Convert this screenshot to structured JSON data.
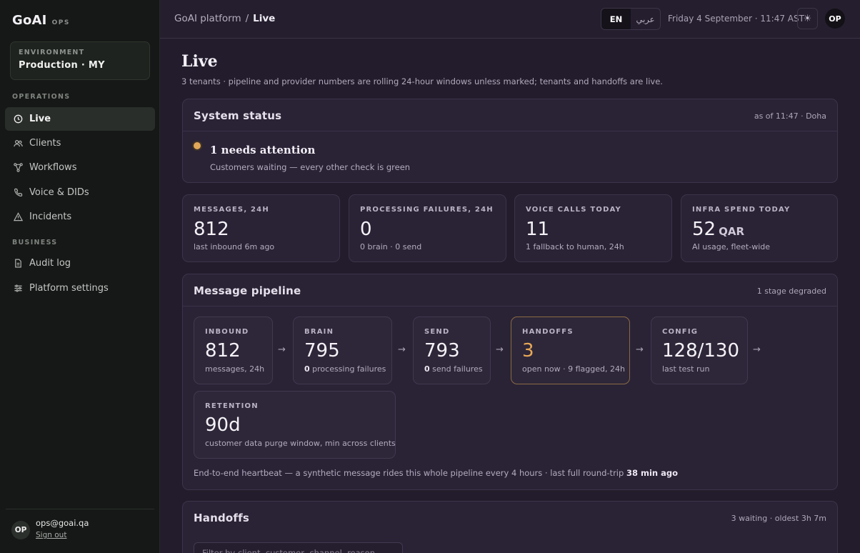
{
  "brand": {
    "name": "GoAI",
    "tag": "OPS"
  },
  "environment": {
    "label": "ENVIRONMENT",
    "value": "Production · MY"
  },
  "nav": {
    "operations_label": "OPERATIONS",
    "operations": [
      {
        "label": "Live",
        "icon": "clock-icon",
        "active": true
      },
      {
        "label": "Clients",
        "icon": "users-icon"
      },
      {
        "label": "Workflows",
        "icon": "workflow-icon"
      },
      {
        "label": "Voice & DIDs",
        "icon": "phone-icon"
      },
      {
        "label": "Incidents",
        "icon": "warning-icon"
      }
    ],
    "business_label": "BUSINESS",
    "business": [
      {
        "label": "Audit log",
        "icon": "document-icon"
      },
      {
        "label": "Platform settings",
        "icon": "sliders-icon"
      }
    ]
  },
  "user": {
    "initials": "OP",
    "email": "ops@goai.qa",
    "sign_out": "Sign out"
  },
  "topbar": {
    "breadcrumb_root": "GoAI platform",
    "breadcrumb_sep": "/",
    "breadcrumb_current": "Live",
    "lang_en": "EN",
    "lang_ar": "عربي",
    "datetime": "Friday 4 September · 11:47 AST",
    "theme_icon": "☀",
    "avatar": "OP"
  },
  "page": {
    "title": "Live",
    "subtitle": "3 tenants · pipeline and provider numbers are rolling 24-hour windows unless marked; tenants and handoffs are live."
  },
  "system_status": {
    "title": "System status",
    "meta": "as of 11:47 · Doha",
    "headline": "1 needs attention",
    "detail": "Customers waiting — every other check is green",
    "dot_color": "#e1a85a"
  },
  "kpis": [
    {
      "label": "MESSAGES, 24H",
      "value": "812",
      "unit": "",
      "note": "last inbound 6m ago"
    },
    {
      "label": "PROCESSING FAILURES, 24H",
      "value": "0",
      "unit": "",
      "note": "0 brain · 0 send"
    },
    {
      "label": "VOICE CALLS TODAY",
      "value": "11",
      "unit": "",
      "note": "1 fallback to human, 24h"
    },
    {
      "label": "INFRA SPEND TODAY",
      "value": "52",
      "unit": "QAR",
      "note": "AI usage, fleet-wide"
    }
  ],
  "pipeline": {
    "title": "Message pipeline",
    "meta": "1 stage degraded",
    "arrow": "→",
    "stages": [
      {
        "label": "INBOUND",
        "value": "812",
        "note_bold": "",
        "note": "messages, 24h"
      },
      {
        "label": "BRAIN",
        "value": "795",
        "note_bold": "0",
        "note": " processing failures"
      },
      {
        "label": "SEND",
        "value": "793",
        "note_bold": "0",
        "note": " send failures"
      },
      {
        "label": "HANDOFFS",
        "value": "3",
        "note_bold": "",
        "note": "open now · 9 flagged, 24h"
      },
      {
        "label": "CONFIG",
        "value": "128/130",
        "note_bold": "",
        "note": "last test run"
      },
      {
        "label": "RETENTION",
        "value": "90d",
        "note_bold": "",
        "note": "customer data purge window, min across clients"
      }
    ],
    "heartbeat_text": "End-to-end heartbeat — a synthetic message rides this whole pipeline every 4 hours · last full round-trip ",
    "heartbeat_bold": "38 min ago",
    "warn_color": "#e8a857"
  },
  "handoffs": {
    "title": "Handoffs",
    "meta": "3 waiting · oldest 3h 7m",
    "filter_placeholder": "Filter by client, customer, channel, reason"
  }
}
